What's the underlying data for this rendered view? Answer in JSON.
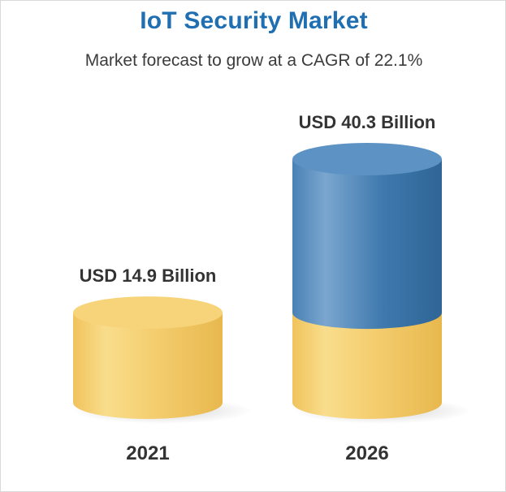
{
  "chart_data": {
    "type": "bar",
    "title": "IoT Security Market",
    "subtitle": "Market forecast to grow at a CAGR of 22.1%",
    "categories": [
      "2021",
      "2026"
    ],
    "values": [
      14.9,
      40.3
    ],
    "value_labels": [
      "USD 14.9 Billion",
      "USD 40.3 Billion"
    ],
    "unit": "USD Billion",
    "segments_2026": [
      {
        "base": 14.9,
        "color": "#f2c765"
      },
      {
        "growth": 25.4,
        "color": "#3d77ab"
      }
    ],
    "ylim": [
      0,
      40.3
    ],
    "grid": false,
    "legend": "none",
    "colors": {
      "base": "#f2c765",
      "base_light": "#f9dd8c",
      "base_top": "#f7d47a",
      "growth": "#3d77ab",
      "growth_light": "#7aa6cf",
      "growth_top": "#5d93c4",
      "title": "#1f6fb2",
      "label": "#333333"
    }
  }
}
